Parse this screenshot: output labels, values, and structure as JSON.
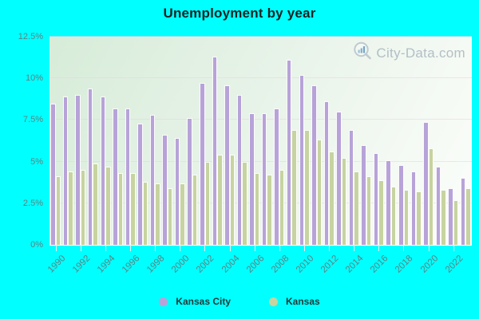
{
  "title": "Unemployment by year",
  "watermark": {
    "text": "City-Data.com"
  },
  "legend": {
    "items": [
      {
        "label": "Kansas City",
        "color": "#b7a3d8"
      },
      {
        "label": "Kansas",
        "color": "#c7d3a0"
      }
    ]
  },
  "colors": {
    "page_background": "#00ffff",
    "kansas_city_bar": "#b7a3d8",
    "kansas_bar": "#c7d3a0",
    "axis_text": "#5d8282",
    "title_text": "#162222",
    "watermark_text": "#a9b5bf",
    "plot_gradient_top": "#d7ecd9",
    "plot_gradient_bottom": "#fbfdfb"
  },
  "chart_data": {
    "type": "bar",
    "title": "Unemployment by year",
    "xlabel": "",
    "ylabel": "",
    "ylim": [
      0,
      12.5
    ],
    "grid": true,
    "legend_position": "bottom",
    "y_tick_values": [
      0,
      2.5,
      5,
      7.5,
      10,
      12.5
    ],
    "y_tick_labels": [
      "0%",
      "2.5%",
      "5%",
      "7.5%",
      "10%",
      "12.5%"
    ],
    "x": [
      1990,
      1991,
      1992,
      1993,
      1994,
      1995,
      1996,
      1997,
      1998,
      1999,
      2000,
      2001,
      2002,
      2003,
      2004,
      2005,
      2006,
      2007,
      2008,
      2009,
      2010,
      2011,
      2012,
      2013,
      2014,
      2015,
      2016,
      2017,
      2018,
      2019,
      2020,
      2021,
      2022,
      2023
    ],
    "x_tick_labels": [
      "1990",
      "1992",
      "1994",
      "1996",
      "1998",
      "2000",
      "2002",
      "2004",
      "2006",
      "2008",
      "2010",
      "2012",
      "2014",
      "2016",
      "2018",
      "2020",
      "2022"
    ],
    "series": [
      {
        "name": "Kansas City",
        "color": "#b7a3d8",
        "values": [
          8.5,
          8.9,
          9.0,
          9.4,
          8.9,
          8.2,
          8.2,
          7.3,
          7.8,
          6.6,
          6.4,
          7.6,
          9.7,
          11.3,
          9.6,
          9.0,
          7.9,
          7.9,
          8.2,
          11.1,
          10.2,
          9.6,
          8.6,
          8.0,
          6.9,
          6.0,
          5.5,
          5.1,
          4.8,
          4.4,
          7.4,
          4.7,
          3.4,
          4.0
        ]
      },
      {
        "name": "Kansas",
        "color": "#c7d3a0",
        "values": [
          4.1,
          4.4,
          4.5,
          4.9,
          4.7,
          4.3,
          4.3,
          3.8,
          3.7,
          3.4,
          3.7,
          4.2,
          5.0,
          5.4,
          5.4,
          5.0,
          4.3,
          4.2,
          4.5,
          6.9,
          6.9,
          6.3,
          5.6,
          5.2,
          4.4,
          4.1,
          3.9,
          3.5,
          3.3,
          3.2,
          5.8,
          3.3,
          2.7,
          3.4
        ]
      }
    ]
  }
}
